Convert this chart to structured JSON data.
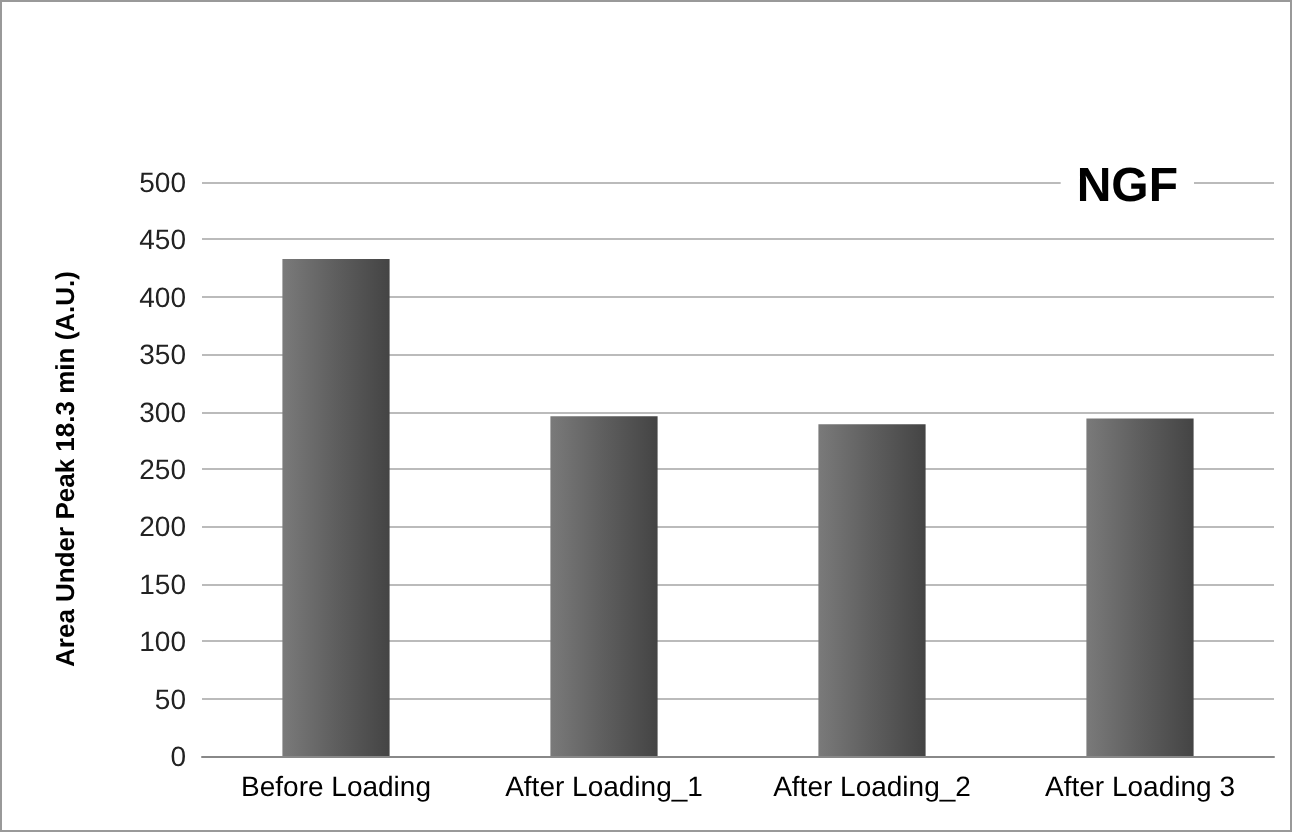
{
  "chart_data": {
    "type": "bar",
    "title": "NGF",
    "ylabel": "Area Under Peak 18.3 min (A.U.)",
    "categories": [
      "Before Loading",
      "After Loading_1",
      "After Loading_2",
      "After Loading 3"
    ],
    "values": [
      433,
      296,
      289,
      294
    ],
    "color": "#5e5e5e",
    "ylim": [
      0,
      500
    ],
    "yticks": [
      0,
      50,
      100,
      150,
      200,
      250,
      300,
      350,
      400,
      450,
      500
    ],
    "grid": "y"
  }
}
